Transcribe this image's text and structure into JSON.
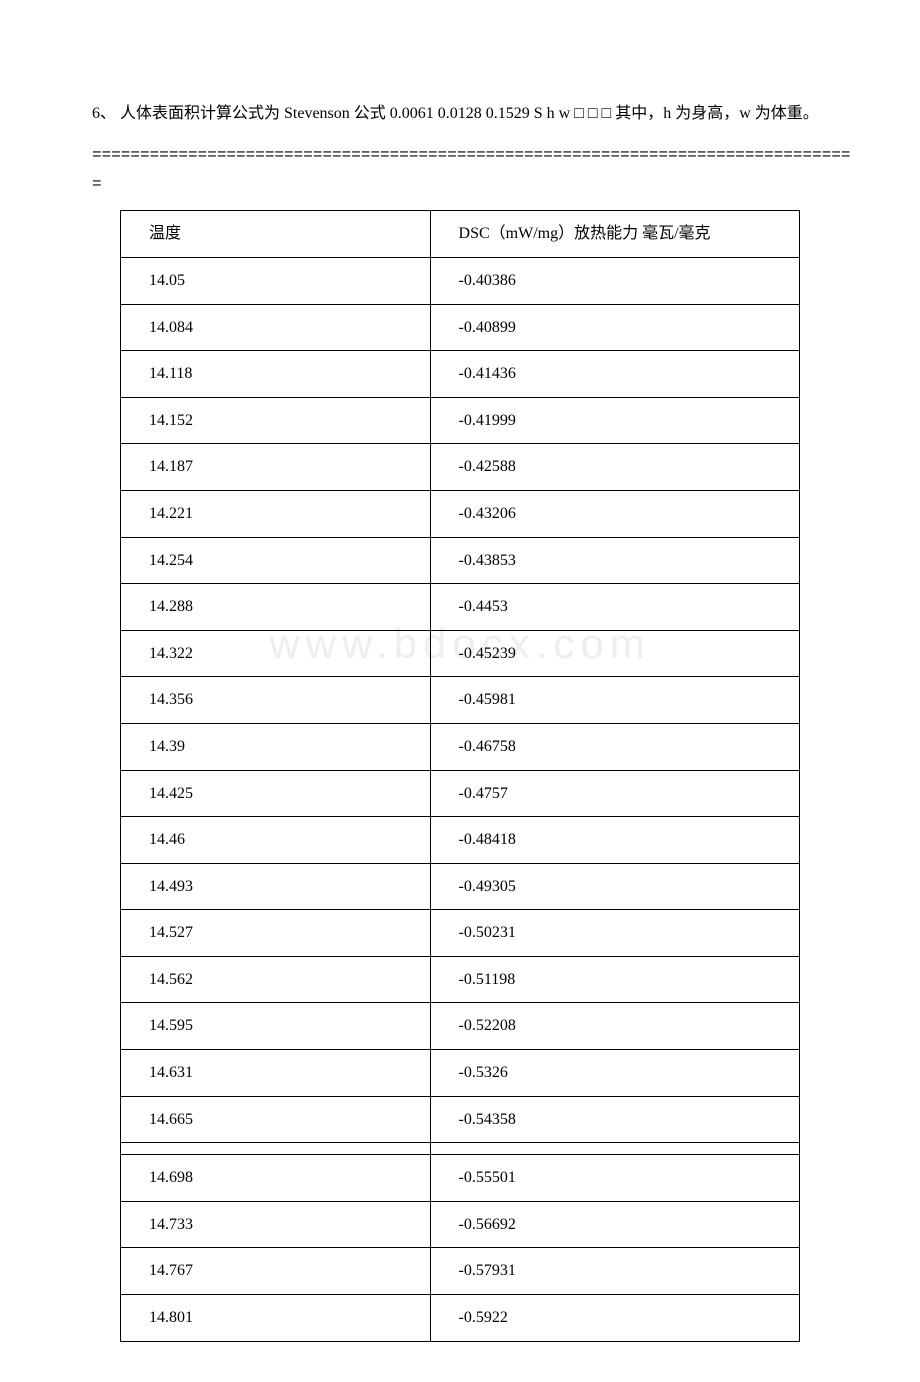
{
  "watermark": "www.bdocx.com",
  "paragraph1": "6、 人体表面积计算公式为 Stevenson 公式 0.0061 0.0128 0.1529 S h w □ □ □ 其中，h 为身高，w 为体重。",
  "divider": "================================================================================",
  "table": {
    "header": {
      "col1": "温度",
      "col2": "DSC（mW/mg）放热能力 毫瓦/毫克"
    },
    "rows": [
      {
        "c1": "14.05",
        "c2": "-0.40386"
      },
      {
        "c1": "14.084",
        "c2": "-0.40899"
      },
      {
        "c1": "14.118",
        "c2": "-0.41436"
      },
      {
        "c1": "14.152",
        "c2": "-0.41999"
      },
      {
        "c1": "14.187",
        "c2": "-0.42588"
      },
      {
        "c1": "14.221",
        "c2": "-0.43206"
      },
      {
        "c1": "14.254",
        "c2": "-0.43853"
      },
      {
        "c1": "14.288",
        "c2": "-0.4453"
      },
      {
        "c1": "14.322",
        "c2": "-0.45239"
      },
      {
        "c1": "14.356",
        "c2": "-0.45981"
      },
      {
        "c1": "14.39",
        "c2": "-0.46758"
      },
      {
        "c1": "14.425",
        "c2": "-0.4757"
      },
      {
        "c1": "14.46",
        "c2": "-0.48418"
      },
      {
        "c1": "14.493",
        "c2": "-0.49305"
      },
      {
        "c1": "14.527",
        "c2": "-0.50231"
      },
      {
        "c1": "14.562",
        "c2": "-0.51198"
      },
      {
        "c1": "14.595",
        "c2": "-0.52208"
      },
      {
        "c1": "14.631",
        "c2": "-0.5326"
      },
      {
        "c1": "14.665",
        "c2": "-0.54358"
      },
      {
        "spacer": true
      },
      {
        "c1": "14.698",
        "c2": "-0.55501"
      },
      {
        "c1": "14.733",
        "c2": "-0.56692"
      },
      {
        "c1": "14.767",
        "c2": "-0.57931"
      },
      {
        "c1": "14.801",
        "c2": "-0.5922"
      }
    ]
  }
}
